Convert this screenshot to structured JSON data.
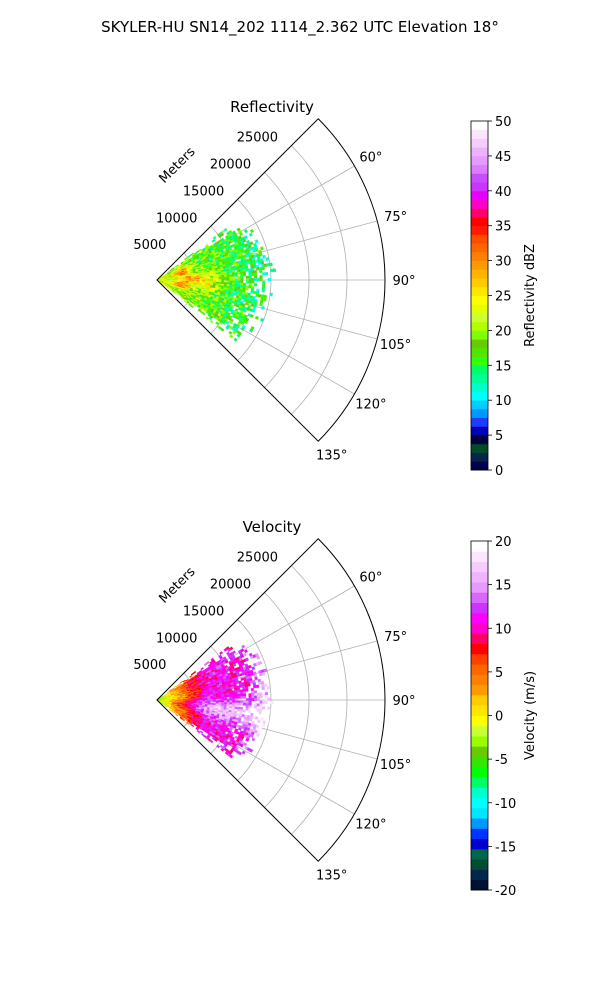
{
  "suptitle": "SKYLER-HU  SN14_202  1114_2.362 UTC Elevation 18°",
  "palettes": {
    "reflectivity": [
      "#00004c",
      "#00264c",
      "#004c26",
      "#00003c",
      "#0000b4",
      "#1f3bff",
      "#0096ff",
      "#00ccff",
      "#00ffff",
      "#00ffcc",
      "#00ff99",
      "#00ff66",
      "#33ff00",
      "#50e600",
      "#66cc00",
      "#80ff00",
      "#b3ff00",
      "#ccff33",
      "#e6ff00",
      "#ffff00",
      "#ffe600",
      "#ffcc00",
      "#ffb400",
      "#ff9900",
      "#ff7f00",
      "#ff6600",
      "#ff4c00",
      "#ff1a00",
      "#ff0000",
      "#ff0066",
      "#ff00cc",
      "#e600ff",
      "#cc33ff",
      "#c84dff",
      "#d97fff",
      "#e699ff",
      "#ebb3ff",
      "#f5ccff",
      "#fae6ff",
      "#ffffff"
    ],
    "velocity": [
      "#001133",
      "#00284a",
      "#004c33",
      "#00664c",
      "#0000cc",
      "#0033ff",
      "#0099ff",
      "#00e6ff",
      "#00ffff",
      "#00ffcc",
      "#00ff66",
      "#00ff00",
      "#33e600",
      "#66cc00",
      "#99ff00",
      "#ccff33",
      "#ffff00",
      "#ffe600",
      "#ffcc00",
      "#ff9900",
      "#ff8000",
      "#ff6600",
      "#ff4000",
      "#ff0000",
      "#ff0066",
      "#ff00cc",
      "#ff00ff",
      "#cc33ff",
      "#d966ff",
      "#e699ff",
      "#f0b3ff",
      "#f5ccff",
      "#fae6ff",
      "#ffffff"
    ]
  },
  "panels": [
    {
      "id": "reflectivity",
      "title": "Reflectivity",
      "range_unit_label": "Meters",
      "chart_data": {
        "type": "heatmap",
        "coordinate_system": "polar (azimuth sector, range)",
        "azimuth_deg": [
          45,
          135
        ],
        "range_m": [
          0,
          30000
        ],
        "range_ticks": [
          "5000",
          "10000",
          "15000",
          "20000",
          "25000"
        ],
        "range_tick_values": [
          5000,
          10000,
          15000,
          20000,
          25000
        ],
        "azimuth_ticks": [
          "60°",
          "75°",
          "90°",
          "105°",
          "120°",
          "135°"
        ],
        "azimuth_tick_values": [
          60,
          75,
          90,
          105,
          120,
          135
        ],
        "grid": true,
        "data_extent_m": 16000,
        "colorbar": {
          "label": "Reflectivity dBZ",
          "range": [
            0,
            50
          ],
          "ticks": [
            "0",
            "5",
            "10",
            "15",
            "20",
            "25",
            "30",
            "35",
            "40",
            "45",
            "50"
          ],
          "tick_values": [
            0,
            5,
            10,
            15,
            20,
            25,
            30,
            35,
            40,
            45,
            50
          ]
        }
      }
    },
    {
      "id": "velocity",
      "title": "Velocity",
      "range_unit_label": "Meters",
      "chart_data": {
        "type": "heatmap",
        "coordinate_system": "polar (azimuth sector, range)",
        "azimuth_deg": [
          45,
          135
        ],
        "range_m": [
          0,
          30000
        ],
        "range_ticks": [
          "5000",
          "10000",
          "15000",
          "20000",
          "25000"
        ],
        "range_tick_values": [
          5000,
          10000,
          15000,
          20000,
          25000
        ],
        "azimuth_ticks": [
          "60°",
          "75°",
          "90°",
          "105°",
          "120°",
          "135°"
        ],
        "azimuth_tick_values": [
          60,
          75,
          90,
          105,
          120,
          135
        ],
        "grid": true,
        "data_extent_m": 16000,
        "colorbar": {
          "label": "Velocity (m/s)",
          "range": [
            -20,
            20
          ],
          "ticks": [
            "-20",
            "-15",
            "-10",
            "-5",
            "0",
            "5",
            "10",
            "15",
            "20"
          ],
          "tick_values": [
            -20,
            -15,
            -10,
            -5,
            0,
            5,
            10,
            15,
            20
          ]
        }
      }
    }
  ]
}
